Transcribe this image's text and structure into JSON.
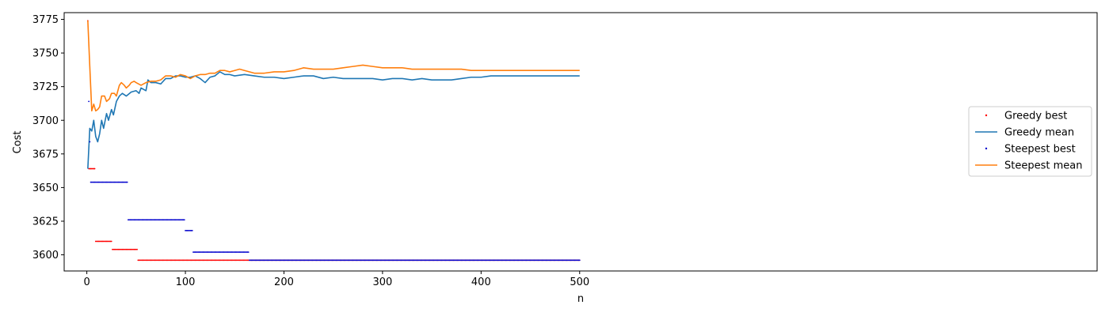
{
  "chart_data": {
    "type": "line",
    "title": "",
    "xlabel": "n",
    "ylabel": "Cost",
    "xlim": [
      -23,
      1025
    ],
    "ylim": [
      3588,
      3780
    ],
    "xticks": [
      0,
      100,
      200,
      300,
      400,
      500
    ],
    "yticks": [
      3600,
      3625,
      3650,
      3675,
      3700,
      3725,
      3750,
      3775
    ],
    "grid": false,
    "legend_position": "center-right",
    "series": [
      {
        "name": "Greedy best",
        "style": "points",
        "color": "#ff0000",
        "segments": [
          {
            "x_start": 1,
            "x_end": 1,
            "value": 3774
          },
          {
            "x_start": 2,
            "x_end": 8,
            "value": 3664
          },
          {
            "x_start": 9,
            "x_end": 25,
            "value": 3610
          },
          {
            "x_start": 26,
            "x_end": 51,
            "value": 3604
          },
          {
            "x_start": 52,
            "x_end": 500,
            "value": 3596
          }
        ]
      },
      {
        "name": "Greedy mean",
        "style": "line",
        "color": "#1f77b4",
        "points": [
          [
            1,
            3664
          ],
          [
            3,
            3694
          ],
          [
            5,
            3692
          ],
          [
            7,
            3700
          ],
          [
            9,
            3688
          ],
          [
            11,
            3684
          ],
          [
            13,
            3690
          ],
          [
            15,
            3700
          ],
          [
            17,
            3694
          ],
          [
            20,
            3705
          ],
          [
            22,
            3700
          ],
          [
            25,
            3708
          ],
          [
            27,
            3704
          ],
          [
            30,
            3714
          ],
          [
            33,
            3718
          ],
          [
            36,
            3720
          ],
          [
            40,
            3718
          ],
          [
            45,
            3721
          ],
          [
            50,
            3722
          ],
          [
            53,
            3720
          ],
          [
            55,
            3724
          ],
          [
            60,
            3722
          ],
          [
            62,
            3730
          ],
          [
            65,
            3728
          ],
          [
            70,
            3728
          ],
          [
            75,
            3727
          ],
          [
            80,
            3731
          ],
          [
            85,
            3731
          ],
          [
            90,
            3733
          ],
          [
            95,
            3733
          ],
          [
            100,
            3732
          ],
          [
            105,
            3732
          ],
          [
            110,
            3733
          ],
          [
            115,
            3731
          ],
          [
            120,
            3728
          ],
          [
            125,
            3732
          ],
          [
            130,
            3733
          ],
          [
            135,
            3736
          ],
          [
            140,
            3734
          ],
          [
            145,
            3734
          ],
          [
            150,
            3733
          ],
          [
            160,
            3734
          ],
          [
            170,
            3733
          ],
          [
            180,
            3732
          ],
          [
            190,
            3732
          ],
          [
            200,
            3731
          ],
          [
            210,
            3732
          ],
          [
            220,
            3733
          ],
          [
            230,
            3733
          ],
          [
            240,
            3731
          ],
          [
            250,
            3732
          ],
          [
            260,
            3731
          ],
          [
            270,
            3731
          ],
          [
            280,
            3731
          ],
          [
            290,
            3731
          ],
          [
            300,
            3730
          ],
          [
            310,
            3731
          ],
          [
            320,
            3731
          ],
          [
            330,
            3730
          ],
          [
            340,
            3731
          ],
          [
            350,
            3730
          ],
          [
            360,
            3730
          ],
          [
            370,
            3730
          ],
          [
            380,
            3731
          ],
          [
            390,
            3732
          ],
          [
            400,
            3732
          ],
          [
            410,
            3733
          ],
          [
            420,
            3733
          ],
          [
            430,
            3733
          ],
          [
            440,
            3733
          ],
          [
            450,
            3733
          ],
          [
            460,
            3733
          ],
          [
            470,
            3733
          ],
          [
            480,
            3733
          ],
          [
            490,
            3733
          ],
          [
            500,
            3733
          ]
        ]
      },
      {
        "name": "Steepest best",
        "style": "points",
        "color": "#0000cd",
        "segments": [
          {
            "x_start": 2,
            "x_end": 2,
            "value": 3714
          },
          {
            "x_start": 3,
            "x_end": 3,
            "value": 3684
          },
          {
            "x_start": 4,
            "x_end": 41,
            "value": 3654
          },
          {
            "x_start": 42,
            "x_end": 99,
            "value": 3626
          },
          {
            "x_start": 100,
            "x_end": 107,
            "value": 3618
          },
          {
            "x_start": 108,
            "x_end": 164,
            "value": 3602
          },
          {
            "x_start": 165,
            "x_end": 500,
            "value": 3596
          }
        ]
      },
      {
        "name": "Steepest mean",
        "style": "line",
        "color": "#ff7f0e",
        "points": [
          [
            1,
            3774
          ],
          [
            3,
            3740
          ],
          [
            5,
            3707
          ],
          [
            7,
            3712
          ],
          [
            9,
            3707
          ],
          [
            11,
            3708
          ],
          [
            13,
            3710
          ],
          [
            15,
            3718
          ],
          [
            18,
            3718
          ],
          [
            20,
            3714
          ],
          [
            23,
            3716
          ],
          [
            25,
            3720
          ],
          [
            28,
            3720
          ],
          [
            30,
            3718
          ],
          [
            33,
            3726
          ],
          [
            35,
            3728
          ],
          [
            38,
            3726
          ],
          [
            40,
            3724
          ],
          [
            43,
            3726
          ],
          [
            45,
            3728
          ],
          [
            48,
            3729
          ],
          [
            50,
            3728
          ],
          [
            55,
            3726
          ],
          [
            60,
            3728
          ],
          [
            65,
            3729
          ],
          [
            70,
            3729
          ],
          [
            75,
            3730
          ],
          [
            80,
            3733
          ],
          [
            85,
            3733
          ],
          [
            90,
            3732
          ],
          [
            95,
            3734
          ],
          [
            100,
            3733
          ],
          [
            105,
            3731
          ],
          [
            110,
            3733
          ],
          [
            115,
            3734
          ],
          [
            120,
            3734
          ],
          [
            125,
            3735
          ],
          [
            130,
            3735
          ],
          [
            135,
            3737
          ],
          [
            140,
            3737
          ],
          [
            145,
            3736
          ],
          [
            150,
            3737
          ],
          [
            155,
            3738
          ],
          [
            160,
            3737
          ],
          [
            170,
            3735
          ],
          [
            180,
            3735
          ],
          [
            190,
            3736
          ],
          [
            200,
            3736
          ],
          [
            210,
            3737
          ],
          [
            220,
            3739
          ],
          [
            230,
            3738
          ],
          [
            240,
            3738
          ],
          [
            250,
            3738
          ],
          [
            260,
            3739
          ],
          [
            270,
            3740
          ],
          [
            280,
            3741
          ],
          [
            290,
            3740
          ],
          [
            300,
            3739
          ],
          [
            310,
            3739
          ],
          [
            320,
            3739
          ],
          [
            330,
            3738
          ],
          [
            340,
            3738
          ],
          [
            350,
            3738
          ],
          [
            360,
            3738
          ],
          [
            370,
            3738
          ],
          [
            380,
            3738
          ],
          [
            390,
            3737
          ],
          [
            400,
            3737
          ],
          [
            410,
            3737
          ],
          [
            420,
            3737
          ],
          [
            430,
            3737
          ],
          [
            440,
            3737
          ],
          [
            450,
            3737
          ],
          [
            460,
            3737
          ],
          [
            470,
            3737
          ],
          [
            480,
            3737
          ],
          [
            490,
            3737
          ],
          [
            500,
            3737
          ]
        ]
      }
    ]
  }
}
